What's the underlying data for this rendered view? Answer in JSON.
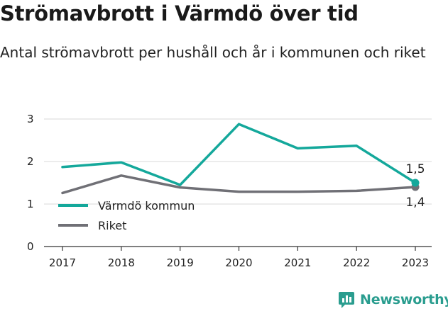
{
  "title": "Strömavbrott i Värmdö över tid",
  "subtitle": "Antal strömavbrott per hushåll och år i kommunen och riket",
  "brand": {
    "name": "Newsworthy",
    "icon": "newsworthy-logo-icon",
    "color": "#2a9d8f"
  },
  "chart_data": {
    "type": "line",
    "x": [
      "2017",
      "2018",
      "2019",
      "2020",
      "2021",
      "2022",
      "2023"
    ],
    "series": [
      {
        "name": "Värmdö kommun",
        "color": "#14a89b",
        "values": [
          1.87,
          1.98,
          1.45,
          2.88,
          2.31,
          2.37,
          1.5
        ]
      },
      {
        "name": "Riket",
        "color": "#707076",
        "values": [
          1.26,
          1.67,
          1.39,
          1.29,
          1.29,
          1.31,
          1.4
        ]
      }
    ],
    "end_labels": [
      "1,5",
      "1,4"
    ],
    "yticks": [
      "0",
      "1",
      "2",
      "3"
    ],
    "ylim": [
      0,
      3.3
    ],
    "grid": true,
    "legend_position": "bottom-left"
  }
}
